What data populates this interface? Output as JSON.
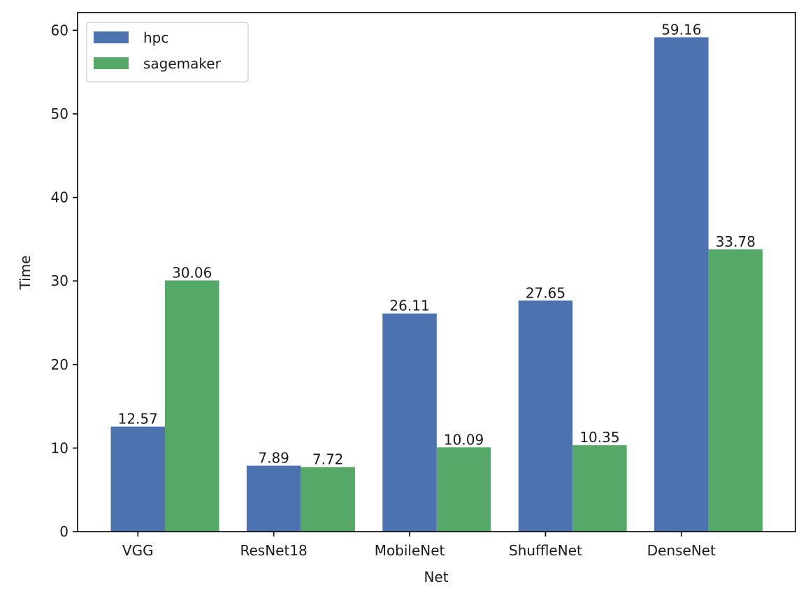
{
  "chart_data": {
    "type": "bar",
    "title": "",
    "xlabel": "Net",
    "ylabel": "Time",
    "categories": [
      "VGG",
      "ResNet18",
      "MobileNet",
      "ShuffleNet",
      "DenseNet"
    ],
    "series": [
      {
        "name": "hpc",
        "color": "#4c72b0",
        "values": [
          12.57,
          7.89,
          26.11,
          27.65,
          59.16
        ],
        "labels": [
          "12.57",
          "7.89",
          "26.11",
          "27.65",
          "59.16"
        ]
      },
      {
        "name": "sagemaker",
        "color": "#55a868",
        "values": [
          30.06,
          7.72,
          10.09,
          10.35,
          33.78
        ],
        "labels": [
          "30.06",
          "7.72",
          "10.09",
          "10.35",
          "33.78"
        ]
      }
    ],
    "ylim": [
      0,
      62.12
    ],
    "yticks": [
      0,
      10,
      20,
      30,
      40,
      50,
      60
    ],
    "ytick_labels": [
      "0",
      "10",
      "20",
      "30",
      "40",
      "50",
      "60"
    ],
    "grid": false,
    "legend_position": "top-left"
  }
}
